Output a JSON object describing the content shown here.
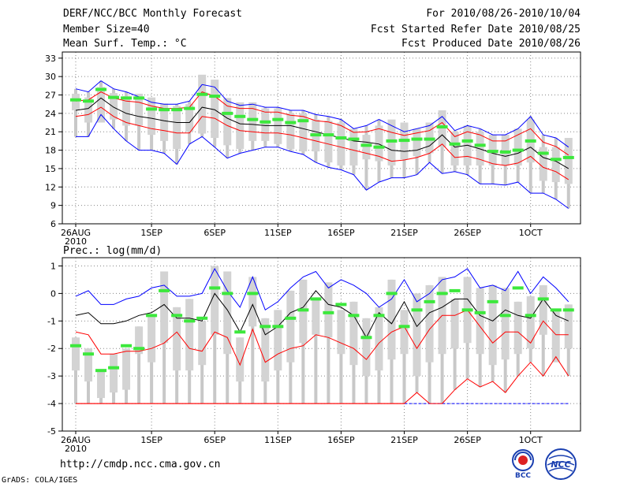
{
  "header": {
    "left": [
      "DERF/NCC/BCC Monthly Forecast",
      "Member Size=40",
      "Mean Surf. Temp.: °C"
    ],
    "right": [
      "For 2010/08/26-2010/10/04",
      "Fcst Started Refer Date 2010/08/25",
      "Fcst Produced Date 2010/08/26"
    ]
  },
  "precip_label": "Prec.: log(mm/d)",
  "footer": {
    "url": "http://cmdp.ncc.cma.gov.cn",
    "credit": "GrADS: COLA/IGES"
  },
  "logos": [
    {
      "icon": "bcc-logo",
      "text": "BCC"
    },
    {
      "icon": "ncc-logo",
      "text": "NCC"
    }
  ],
  "colors": {
    "ensemble_bar": "#d3d3d3",
    "upper": "#0000ff",
    "inner": "#ff0000",
    "mean": "#000000",
    "marker": "#3ce83c"
  },
  "chart_data": [
    {
      "type": "box-ensemble",
      "title": "Mean Surf. Temp.: °C",
      "x_tick_labels": [
        "26AUG",
        "1SEP",
        "6SEP",
        "11SEP",
        "16SEP",
        "21SEP",
        "26SEP",
        "1OCT"
      ],
      "x_tick_days": [
        0,
        6,
        11,
        16,
        21,
        26,
        31,
        36
      ],
      "x_sublabel": "2010",
      "y_ticks": [
        6,
        9,
        12,
        15,
        18,
        21,
        24,
        27,
        30,
        33
      ],
      "ylim": [
        6,
        34
      ],
      "days": 40,
      "series": {
        "max": [
          28,
          27.5,
          29.3,
          28,
          27.5,
          26.7,
          25.8,
          25.5,
          25.5,
          26,
          28.7,
          28.3,
          26,
          25.3,
          25.5,
          25,
          25,
          24.5,
          24.5,
          23.8,
          23.5,
          23,
          21.5,
          22,
          23,
          22,
          21,
          21.5,
          22,
          23.5,
          21.2,
          22,
          21.5,
          20.5,
          20.5,
          21.5,
          23.5,
          20.5,
          20,
          18.5
        ],
        "upper": [
          26,
          26.2,
          27.5,
          26.5,
          26,
          25.8,
          25.2,
          24.8,
          24.8,
          25,
          27.5,
          26.8,
          25.2,
          24.8,
          24.8,
          24.2,
          24.2,
          23.7,
          23.5,
          22.8,
          22.6,
          22,
          20.9,
          21,
          21.5,
          20.9,
          20.4,
          20.8,
          21.2,
          22.5,
          20.2,
          21,
          20.5,
          19.5,
          19.5,
          20.5,
          21.5,
          19.3,
          18.6,
          17.2
        ],
        "mean": [
          24.5,
          24.8,
          26.5,
          25,
          24,
          23.5,
          23.2,
          22.8,
          22.5,
          22.5,
          25,
          24.6,
          23.2,
          22.3,
          22.2,
          22,
          22,
          22,
          21.5,
          21,
          20.5,
          20,
          19.5,
          19.3,
          19,
          18,
          17.8,
          18,
          18.7,
          20.5,
          18.5,
          18.8,
          18.2,
          17.5,
          17,
          17.5,
          18.5,
          16.8,
          16.2,
          15
        ],
        "lower": [
          23.5,
          23.8,
          25,
          23.5,
          22.5,
          22,
          21.5,
          21.2,
          20.8,
          20.8,
          23.5,
          23.2,
          22,
          21.2,
          21,
          20.8,
          20.8,
          20.5,
          20,
          19.5,
          19,
          18.5,
          18,
          17.5,
          17,
          16.2,
          16.4,
          16.8,
          17.5,
          19,
          16.8,
          17,
          16.5,
          15.8,
          15.5,
          15.9,
          17,
          15.2,
          14.5,
          13.2
        ],
        "min": [
          20.2,
          20.2,
          23.8,
          21.5,
          19.5,
          18,
          18,
          17.5,
          15.7,
          19,
          20.2,
          18.5,
          16.7,
          17.5,
          18,
          18.5,
          18.5,
          17.8,
          17.3,
          16,
          15.2,
          14.8,
          14,
          11.5,
          12.8,
          13.5,
          13.5,
          14,
          16,
          14.2,
          14.5,
          14,
          12.5,
          12.5,
          12.3,
          12.8,
          11,
          11,
          10,
          8.5
        ],
        "box_top": [
          27.2,
          26.6,
          28.3,
          27.3,
          26.8,
          27.2,
          26.6,
          25.6,
          25.2,
          25.5,
          30.3,
          29.5,
          26.5,
          25.8,
          25.8,
          24.8,
          24.8,
          24,
          24,
          23,
          22.8,
          22.5,
          21.5,
          20.5,
          22,
          23,
          22.5,
          21.5,
          22.5,
          24.5,
          21,
          22,
          21,
          20.5,
          20.5,
          21.5,
          23,
          18.5,
          18.5,
          20
        ],
        "box_bottom": [
          24.5,
          22.5,
          22.5,
          23,
          22,
          22,
          20.5,
          19.5,
          18.2,
          21,
          20.7,
          20,
          18.8,
          18.2,
          19.5,
          19.5,
          19,
          18.2,
          17.8,
          17.8,
          16,
          15.5,
          15.5,
          16.5,
          16.2,
          15.5,
          16.5,
          17,
          17.5,
          18.5,
          15.5,
          15.5,
          15.5,
          15.5,
          15.5,
          15.5,
          16,
          13,
          12.8,
          12.5
        ],
        "marker": [
          26.2,
          26,
          27.9,
          26.6,
          26.5,
          26.5,
          24.7,
          24.6,
          24.6,
          24.8,
          27.1,
          26.8,
          24,
          23.5,
          23,
          22.6,
          23,
          22.5,
          22.8,
          20.5,
          20.5,
          20,
          19.8,
          18.8,
          18.5,
          19.5,
          19.6,
          19.8,
          19.8,
          21.8,
          19,
          19.5,
          18.8,
          17.8,
          17.7,
          18,
          19.5,
          17.5,
          16.5,
          16.8
        ]
      }
    },
    {
      "type": "box-ensemble",
      "title": "Prec.: log(mm/d)",
      "x_tick_labels": [
        "26AUG",
        "1SEP",
        "6SEP",
        "11SEP",
        "16SEP",
        "21SEP",
        "26SEP",
        "1OCT"
      ],
      "x_tick_days": [
        0,
        6,
        11,
        16,
        21,
        26,
        31,
        36
      ],
      "x_sublabel": "2010",
      "y_ticks": [
        -5,
        -4,
        -3,
        -2,
        -1,
        0,
        1
      ],
      "ylim": [
        -5,
        1.3
      ],
      "days": 40,
      "floor_value": -4,
      "series": {
        "upper": [
          -0.1,
          0.1,
          -0.4,
          -0.4,
          -0.2,
          -0.1,
          0.2,
          0.3,
          -0.1,
          -0.1,
          0,
          0.9,
          0.1,
          -0.5,
          0.6,
          -0.6,
          -0.3,
          0.2,
          0.6,
          0.8,
          0.2,
          0.5,
          0.3,
          0,
          -0.5,
          -0.2,
          0.5,
          -0.3,
          0,
          0.5,
          0.6,
          0.9,
          0.2,
          0.3,
          0.1,
          0.8,
          0,
          0.6,
          0.2,
          -0.3
        ],
        "mean": [
          -0.8,
          -0.7,
          -1.1,
          -1.1,
          -1,
          -0.8,
          -0.7,
          -0.4,
          -0.9,
          -0.9,
          -1,
          0,
          -0.6,
          -1.4,
          -0.4,
          -1.5,
          -1.2,
          -0.7,
          -0.5,
          0.1,
          -0.4,
          -0.5,
          -0.8,
          -1.6,
          -0.7,
          -1.1,
          -0.3,
          -1.2,
          -0.7,
          -0.5,
          -0.2,
          -0.2,
          -0.8,
          -1,
          -0.6,
          -0.8,
          -0.9,
          -0.2,
          -0.8,
          -1
        ],
        "lower": [
          -1.4,
          -1.5,
          -2.2,
          -2.2,
          -2.1,
          -2.1,
          -2,
          -1.8,
          -1.4,
          -2,
          -2.1,
          -1.4,
          -1.6,
          -2.6,
          -1.3,
          -2.5,
          -2.2,
          -2,
          -1.9,
          -1.5,
          -1.6,
          -1.8,
          -2,
          -2.4,
          -1.8,
          -1.4,
          -1.2,
          -2,
          -1.3,
          -0.8,
          -0.8,
          -0.6,
          -1.2,
          -1.8,
          -1.4,
          -1.4,
          -1.8,
          -1,
          -1.5,
          -1.5
        ],
        "bottom": [
          -4,
          -4,
          -4,
          -4,
          -4,
          -4,
          -4,
          -4,
          -4,
          -4,
          -4,
          -4,
          -4,
          -4,
          -4,
          -4,
          -4,
          -4,
          -4,
          -4,
          -4,
          -4,
          -4,
          -4,
          -4,
          -4,
          -4,
          -3.6,
          -4,
          -4,
          -3.5,
          -3.1,
          -3.4,
          -3.2,
          -3.6,
          -3,
          -2.5,
          -3,
          -2.3,
          -3
        ],
        "box_top": [
          -1.6,
          -2,
          -2.8,
          -2.2,
          -2,
          -1.2,
          -0.8,
          0.8,
          -0.5,
          -0.2,
          -1,
          1,
          0.8,
          -1.6,
          0.6,
          -0.9,
          -0.6,
          0.1,
          0.5,
          -0.2,
          0.4,
          -0.6,
          -0.3,
          -0.9,
          -0.5,
          0.5,
          -0.6,
          0,
          0.3,
          0.6,
          -0.2,
          0.6,
          0.2,
          0.3,
          0.2,
          -0.3,
          -0.1,
          0.3,
          -0.6,
          -0.4
        ],
        "box_bottom": [
          -2.8,
          -3.2,
          -3.8,
          -3.6,
          -3.5,
          -2.2,
          -2.5,
          -1.8,
          -2.8,
          -2.8,
          -2.6,
          -1.5,
          -2.2,
          -3.2,
          -1.2,
          -3.2,
          -2.8,
          -2.5,
          -1.8,
          -1.5,
          -1.6,
          -2.2,
          -2.6,
          -3,
          -2.8,
          -2.4,
          -2.2,
          -3,
          -2.5,
          -2.2,
          -2,
          -1.8,
          -2.2,
          -2.6,
          -2.4,
          -2.2,
          -2,
          -1.5,
          -2.5,
          -2
        ],
        "marker": [
          -1.9,
          -2.2,
          -2.8,
          -2.7,
          -1.9,
          -2,
          -0.8,
          0.1,
          -0.8,
          -1,
          -0.9,
          0.2,
          0,
          -1.4,
          0,
          -1.2,
          -1.2,
          -0.9,
          -0.6,
          -0.2,
          -0.7,
          -0.4,
          -0.8,
          -1.6,
          -0.8,
          0,
          -1.2,
          -0.6,
          -0.3,
          0,
          0.1,
          -0.6,
          -0.7,
          -0.3,
          -0.8,
          0.2,
          -0.8,
          -0.2,
          -0.6,
          -0.6
        ]
      }
    }
  ]
}
